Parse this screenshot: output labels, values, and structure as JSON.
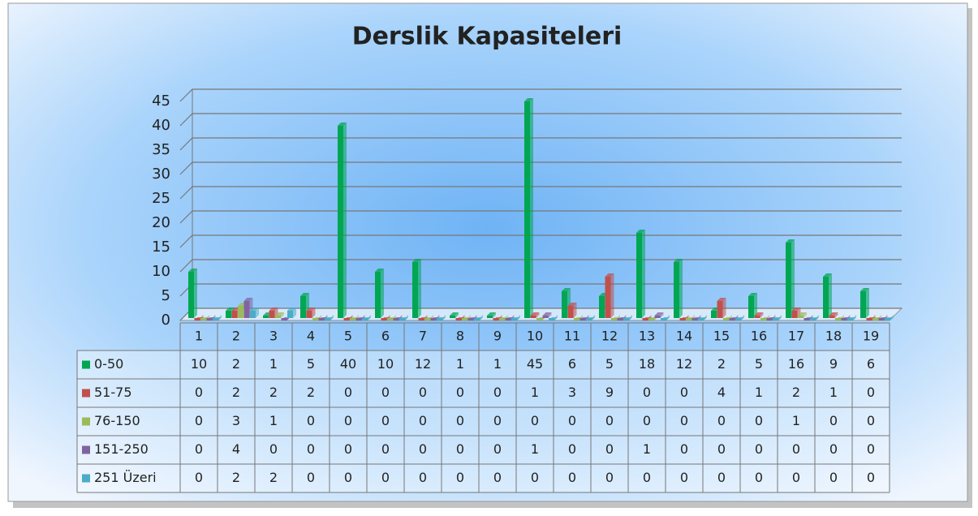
{
  "chart_data": {
    "type": "bar",
    "title": "Derslik Kapasiteleri",
    "categories": [
      "1",
      "2",
      "3",
      "4",
      "5",
      "6",
      "7",
      "8",
      "9",
      "10",
      "11",
      "12",
      "13",
      "14",
      "15",
      "16",
      "17",
      "18",
      "19"
    ],
    "series": [
      {
        "name": "0-50",
        "color": "#00a651",
        "values": [
          10,
          2,
          1,
          5,
          40,
          10,
          12,
          1,
          1,
          45,
          6,
          5,
          18,
          12,
          2,
          5,
          16,
          9,
          6
        ]
      },
      {
        "name": "51-75",
        "color": "#c0504d",
        "values": [
          0,
          2,
          2,
          2,
          0,
          0,
          0,
          0,
          0,
          1,
          3,
          9,
          0,
          0,
          4,
          1,
          2,
          1,
          0
        ]
      },
      {
        "name": "76-150",
        "color": "#9bbb59",
        "values": [
          0,
          3,
          1,
          0,
          0,
          0,
          0,
          0,
          0,
          0,
          0,
          0,
          0,
          0,
          0,
          0,
          1,
          0,
          0
        ]
      },
      {
        "name": "151-250",
        "color": "#8064a2",
        "values": [
          0,
          4,
          0,
          0,
          0,
          0,
          0,
          0,
          0,
          1,
          0,
          0,
          1,
          0,
          0,
          0,
          0,
          0,
          0
        ]
      },
      {
        "name": "251 Üzeri",
        "color": "#4bacc6",
        "values": [
          0,
          2,
          2,
          0,
          0,
          0,
          0,
          0,
          0,
          0,
          0,
          0,
          0,
          0,
          0,
          0,
          0,
          0,
          0
        ]
      }
    ],
    "ylim": [
      0,
      45
    ],
    "yticks": [
      0,
      5,
      10,
      15,
      20,
      25,
      30,
      35,
      40,
      45
    ],
    "grid": true
  }
}
